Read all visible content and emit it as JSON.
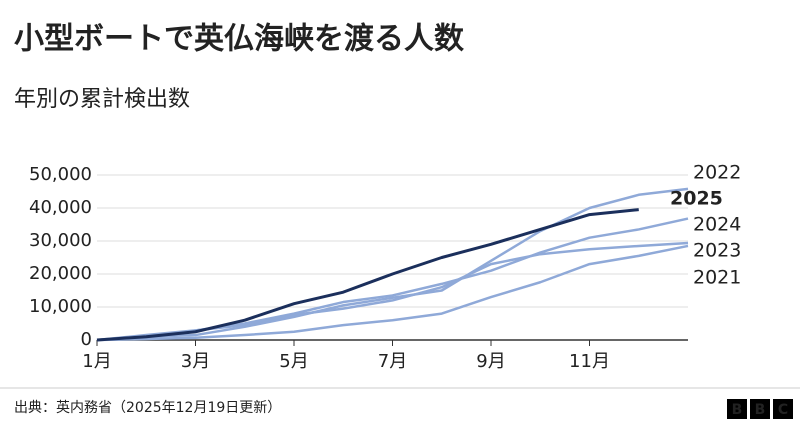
{
  "chart_data": {
    "type": "line",
    "title": "小型ボートで英仏海峡を渡る人数",
    "subtitle": "年別の累計検出数",
    "source": "出典：英内務省（2025年12月19日更新）",
    "logo": [
      "B",
      "B",
      "C"
    ],
    "categories": [
      "1月",
      null,
      "3月",
      null,
      "5月",
      null,
      "7月",
      null,
      "9月",
      null,
      "11月",
      null,
      null
    ],
    "ylim": [
      0,
      50000
    ],
    "yticks": [
      0,
      {
        "value": 10000,
        "label": "10,000"
      },
      {
        "value": 20000,
        "label": "20,000"
      },
      {
        "value": 30000,
        "label": "30,000"
      },
      {
        "value": 40000,
        "label": "40,000"
      },
      {
        "value": 50000,
        "label": "50,000"
      }
    ],
    "grid": true,
    "series": [
      {
        "name": "2022",
        "color": "#8fa9d8",
        "values": [
          0,
          1000,
          1500,
          4000,
          7000,
          10500,
          12800,
          15000,
          24000,
          33000,
          40000,
          44000,
          45800
        ]
      },
      {
        "name": "2025",
        "color": "#1b2f5c",
        "values": [
          0,
          1000,
          2500,
          6000,
          11000,
          14500,
          20000,
          25000,
          29000,
          33500,
          38000,
          39500,
          null
        ]
      },
      {
        "name": "2024",
        "color": "#8fa9d8",
        "values": [
          0,
          1500,
          2900,
          5000,
          8000,
          11500,
          13500,
          17000,
          21000,
          26500,
          31000,
          33500,
          36800
        ]
      },
      {
        "name": "2023",
        "color": "#8fa9d8",
        "values": [
          0,
          500,
          2900,
          4500,
          7600,
          9500,
          12000,
          16000,
          23000,
          26000,
          27500,
          28500,
          29400
        ]
      },
      {
        "name": "2021",
        "color": "#8fa9d8",
        "values": [
          0,
          300,
          700,
          1500,
          2500,
          4500,
          6000,
          8000,
          13000,
          17500,
          23000,
          25500,
          28500
        ]
      }
    ]
  }
}
